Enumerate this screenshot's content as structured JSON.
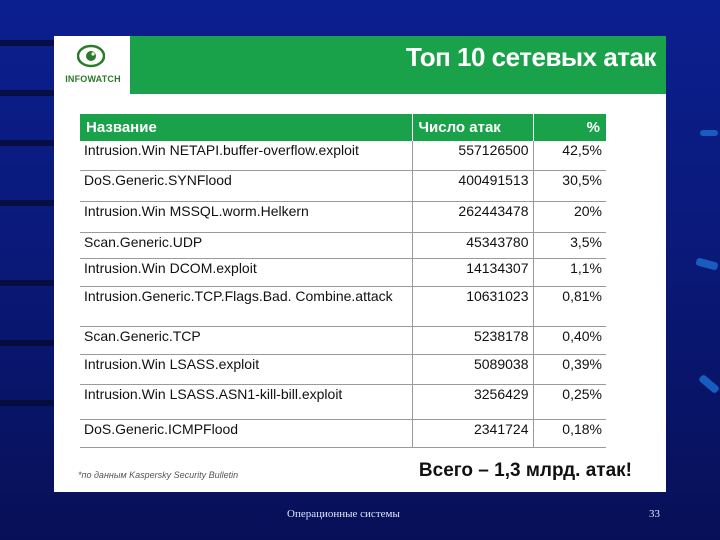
{
  "logo": {
    "brand": "INFOWATCH",
    "icon": "eye-icon"
  },
  "title": "Топ 10 сетевых атак",
  "table": {
    "headers": {
      "name": "Название",
      "count": "Число атак",
      "pct": "%"
    },
    "rows": [
      {
        "name": "Intrusion.Win NETAPI.buffer-overflow.exploit",
        "count": "557126500",
        "pct": "42,5%"
      },
      {
        "name": "DoS.Generic.SYNFlood",
        "count": "400491513",
        "pct": "30,5%"
      },
      {
        "name": "Intrusion.Win MSSQL.worm.Helkern",
        "count": "262443478",
        "pct": "20%"
      },
      {
        "name": "Scan.Generic.UDP",
        "count": "45343780",
        "pct": "3,5%"
      },
      {
        "name": "Intrusion.Win DCOM.exploit",
        "count": "14134307",
        "pct": "1,1%"
      },
      {
        "name": "Intrusion.Generic.TCP.Flags.Bad. Combine.attack",
        "count": "10631023",
        "pct": "0,81%"
      },
      {
        "name": "Scan.Generic.TCP",
        "count": "5238178",
        "pct": "0,40%"
      },
      {
        "name": "Intrusion.Win LSASS.exploit",
        "count": "5089038",
        "pct": "0,39%"
      },
      {
        "name": "Intrusion.Win LSASS.ASN1-kill-bill.exploit",
        "count": "3256429",
        "pct": "0,25%"
      },
      {
        "name": "DoS.Generic.ICMPFlood",
        "count": "2341724",
        "pct": "0,18%"
      }
    ]
  },
  "footnote": "*по данным Kaspersky Security Bulletin",
  "total": "Всего – 1,3 млрд. атак!",
  "footer": {
    "text": "Операционные системы",
    "page": "33"
  },
  "colors": {
    "background": "#0b1f8f",
    "accent_green": "#1aa24a",
    "accent_blue": "#1a64c8"
  }
}
